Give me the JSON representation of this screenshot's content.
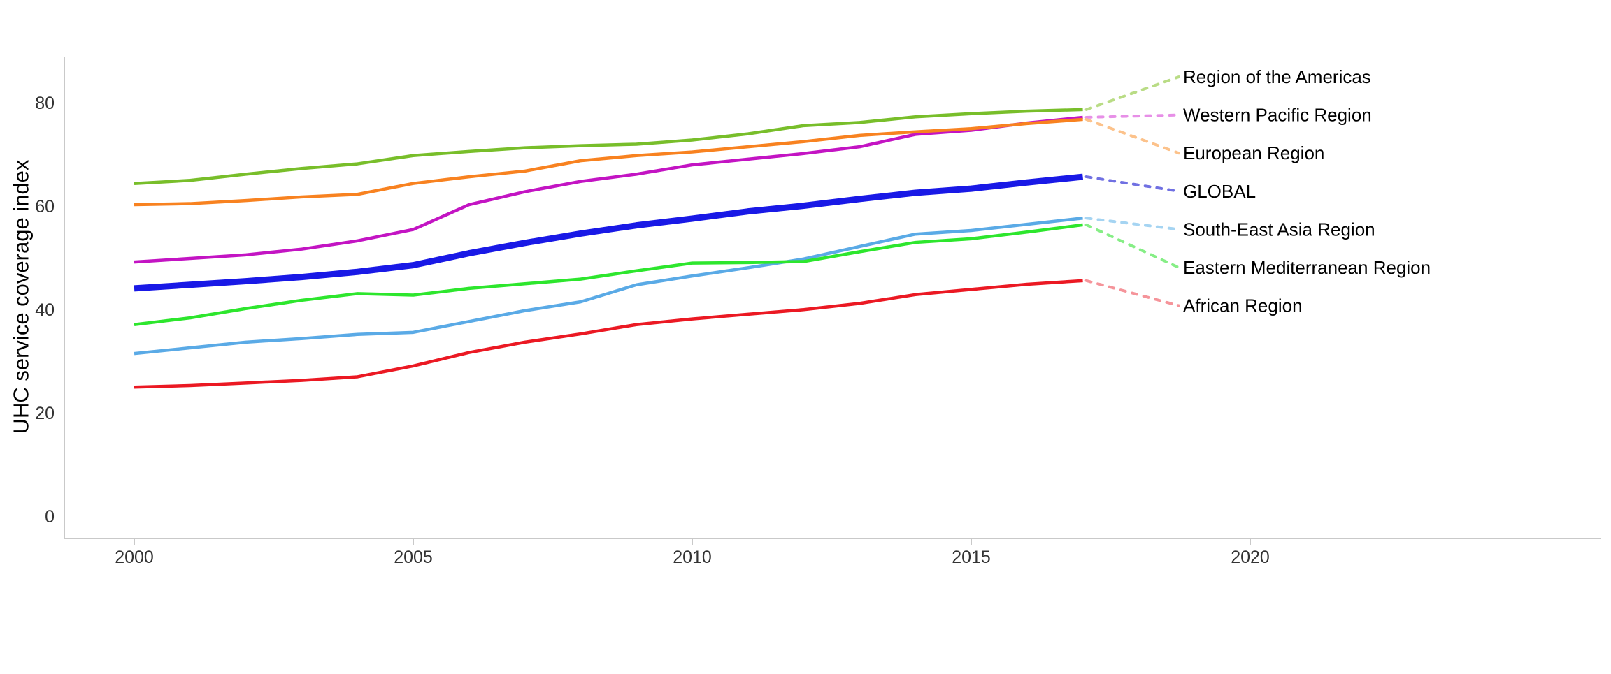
{
  "chart_data": {
    "type": "line",
    "title": "",
    "xlabel": "",
    "ylabel": "UHC service coverage index",
    "x_ticks": [
      2000,
      2005,
      2010,
      2015,
      2020
    ],
    "y_ticks": [
      0,
      20,
      40,
      60,
      80
    ],
    "ylim": [
      0,
      85
    ],
    "xlim": [
      1999,
      2026
    ],
    "grid": "off",
    "legend_position": "right-labels-with-dotted-leaders",
    "axis_color": "#c9c9c9",
    "years": [
      2000,
      2001,
      2002,
      2003,
      2004,
      2005,
      2006,
      2007,
      2008,
      2009,
      2010,
      2011,
      2012,
      2013,
      2014,
      2015,
      2016,
      2017
    ],
    "series": [
      {
        "name": "Region of the Americas",
        "color": "#78be2a",
        "leader_color": "#b9dc85",
        "bold": false,
        "values": [
          64.5,
          65.1,
          66.3,
          67.4,
          68.3,
          69.9,
          70.7,
          71.4,
          71.8,
          72.1,
          72.9,
          74.1,
          75.7,
          76.3,
          77.4,
          78.0,
          78.5,
          78.8
        ]
      },
      {
        "name": "Western Pacific Region",
        "color": "#c314c3",
        "leader_color": "#e78fe7",
        "bold": false,
        "values": [
          49.3,
          50.0,
          50.7,
          51.8,
          53.4,
          55.6,
          60.4,
          62.9,
          64.9,
          66.3,
          68.1,
          69.2,
          70.3,
          71.6,
          74.0,
          74.8,
          76.2,
          77.3
        ]
      },
      {
        "name": "European Region",
        "color": "#f88220",
        "leader_color": "#fcc28b",
        "bold": false,
        "values": [
          60.4,
          60.6,
          61.2,
          61.9,
          62.4,
          64.5,
          65.8,
          66.9,
          68.9,
          69.9,
          70.6,
          71.6,
          72.6,
          73.8,
          74.5,
          75.1,
          76.1,
          76.9
        ]
      },
      {
        "name": "GLOBAL",
        "color": "#1919e6",
        "leader_color": "#7070e2",
        "bold": true,
        "values": [
          44.2,
          44.9,
          45.6,
          46.4,
          47.4,
          48.7,
          51.0,
          53.0,
          54.8,
          56.4,
          57.7,
          59.1,
          60.2,
          61.5,
          62.7,
          63.5,
          64.7,
          65.8
        ]
      },
      {
        "name": "South-East Asia Region",
        "color": "#5aaae6",
        "leader_color": "#a5d4f2",
        "bold": false,
        "values": [
          31.6,
          32.7,
          33.8,
          34.5,
          35.3,
          35.7,
          37.8,
          39.9,
          41.6,
          44.9,
          46.6,
          48.2,
          49.9,
          52.3,
          54.7,
          55.4,
          56.6,
          57.8
        ]
      },
      {
        "name": "Eastern Mediterranean Region",
        "color": "#2de62d",
        "leader_color": "#86ee86",
        "bold": false,
        "values": [
          37.2,
          38.5,
          40.3,
          41.9,
          43.2,
          42.9,
          44.2,
          45.1,
          46.0,
          47.6,
          49.1,
          49.2,
          49.4,
          51.3,
          53.1,
          53.8,
          55.1,
          56.5
        ]
      },
      {
        "name": "African Region",
        "color": "#eb1923",
        "leader_color": "#f5949a",
        "bold": false,
        "values": [
          25.1,
          25.4,
          25.9,
          26.4,
          27.1,
          29.2,
          31.8,
          33.8,
          35.4,
          37.2,
          38.3,
          39.2,
          40.1,
          41.3,
          43.0,
          44.0,
          45.0,
          45.7
        ]
      }
    ]
  }
}
